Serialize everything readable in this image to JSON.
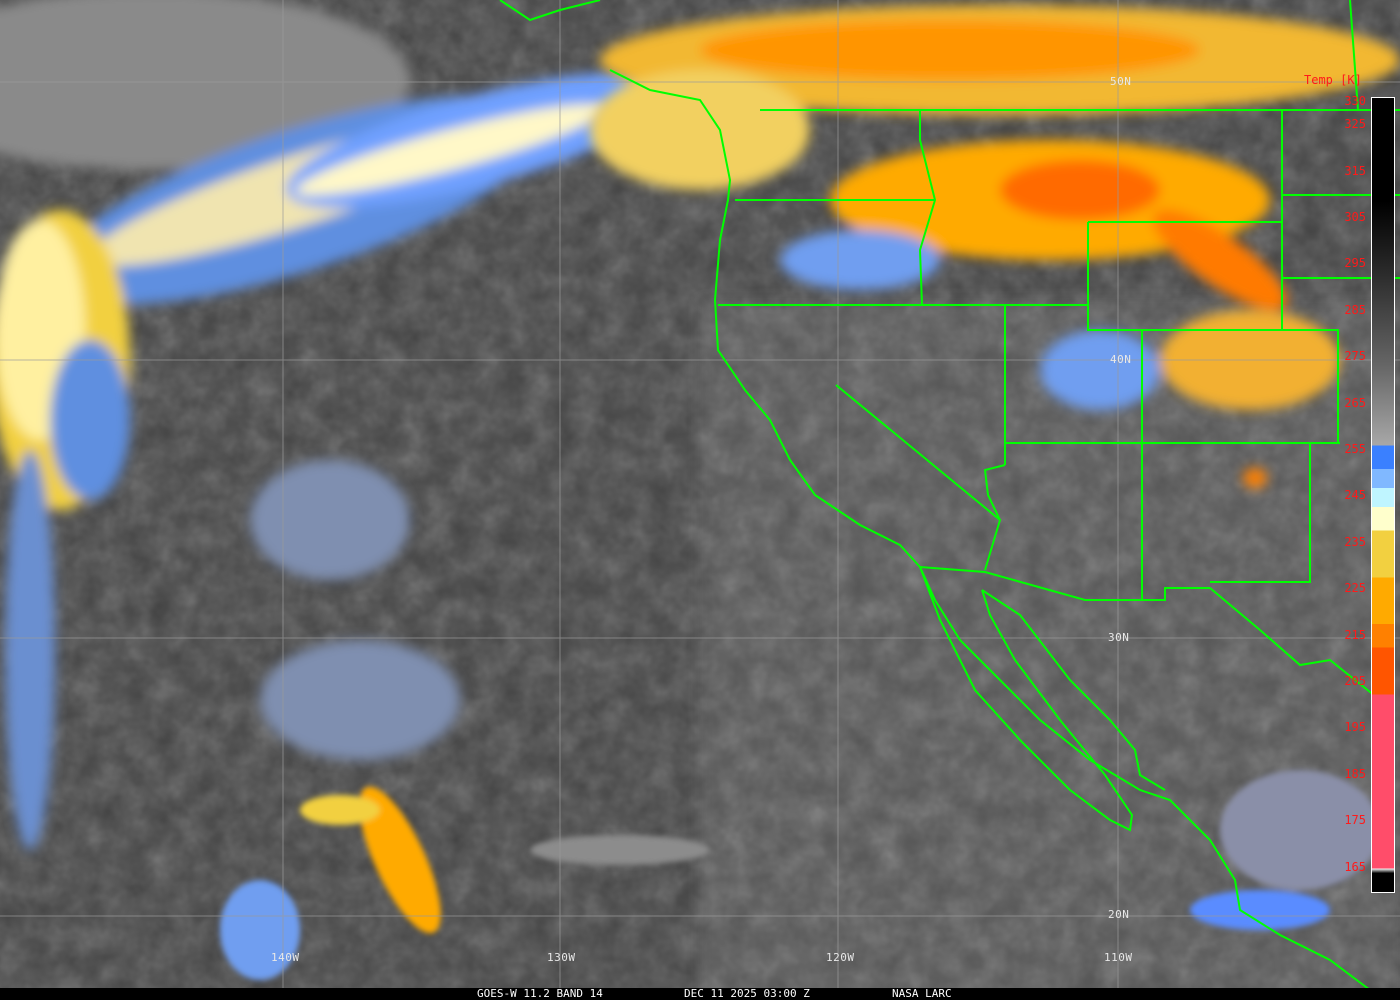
{
  "map": {
    "latitude_labels": [
      "50N",
      "40N",
      "30N",
      "20N"
    ],
    "longitude_labels": [
      "140W",
      "130W",
      "120W",
      "110W"
    ]
  },
  "legend": {
    "title": "Temp [K]",
    "ticks": [
      "330",
      "325",
      "315",
      "305",
      "295",
      "285",
      "275",
      "265",
      "255",
      "245",
      "235",
      "225",
      "215",
      "205",
      "195",
      "185",
      "175",
      "165"
    ],
    "colors": {
      "cold_high_cloud": "#ff4d6a",
      "very_cold": "#ff5500",
      "cold": "#ff8000",
      "orange": "#ffaa00",
      "yellow": "#f2d040",
      "cream": "#ffffcc",
      "cyan": "#bff5ff",
      "blue": "#3a80ff",
      "coastline": "#00ff00"
    }
  },
  "caption": {
    "satellite": "GOES-W 11.2 BAND 14",
    "datetime": "DEC 11 2025 03:00 Z",
    "source": "NASA LARC"
  }
}
